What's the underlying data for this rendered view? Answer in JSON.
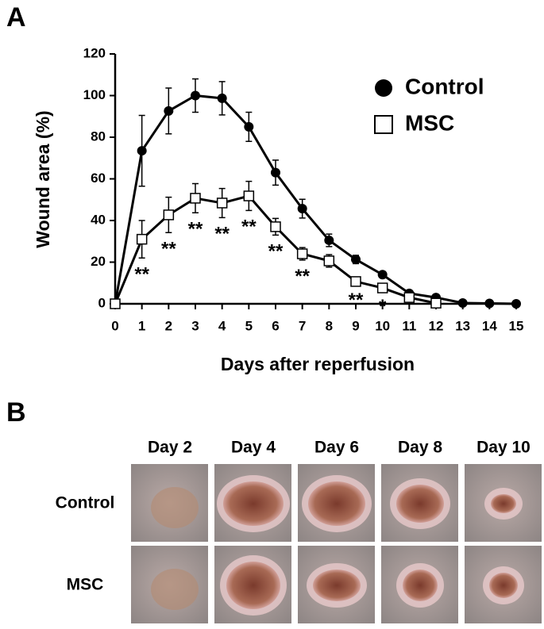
{
  "panel_labels": [
    "A",
    "B"
  ],
  "chart_data": {
    "type": "line",
    "xlabel": "Days after reperfusion",
    "ylabel": "Wound area (%)",
    "x": [
      0,
      1,
      2,
      3,
      4,
      5,
      6,
      7,
      8,
      9,
      10,
      11,
      12,
      13,
      14,
      15
    ],
    "xlim": [
      0,
      15
    ],
    "xticks": [
      0,
      1,
      2,
      3,
      4,
      5,
      6,
      7,
      8,
      9,
      10,
      11,
      12,
      13,
      14,
      15
    ],
    "ylim": [
      0,
      120
    ],
    "yticks": [
      0,
      20,
      40,
      60,
      80,
      100,
      120
    ],
    "series": [
      {
        "name": "Control",
        "color": "#000000",
        "marker": "circle",
        "values": [
          0,
          73.5,
          92.6,
          100,
          98.7,
          85,
          63,
          45.7,
          30.5,
          21.3,
          14,
          5,
          3,
          0.4,
          0.2,
          0
        ],
        "errors": [
          null,
          17,
          11,
          8,
          8,
          7,
          6,
          4.5,
          3,
          2,
          1.5,
          0.8,
          0.5,
          null,
          null,
          null
        ]
      },
      {
        "name": "MSC",
        "color": "#000000",
        "marker": "square",
        "values": [
          0,
          31,
          42.7,
          50.7,
          48.4,
          51.8,
          37,
          24,
          20.6,
          10.7,
          7.6,
          3,
          0.3,
          null,
          null,
          null
        ],
        "errors": [
          null,
          9,
          8.5,
          7,
          7,
          7,
          4,
          3,
          3,
          1,
          1,
          0.5,
          null,
          null,
          null,
          null
        ]
      }
    ],
    "annotations": [
      {
        "x": 1,
        "label": "**"
      },
      {
        "x": 2,
        "label": "**"
      },
      {
        "x": 3,
        "label": "**"
      },
      {
        "x": 4,
        "label": "**"
      },
      {
        "x": 5,
        "label": "**"
      },
      {
        "x": 6,
        "label": "**"
      },
      {
        "x": 7,
        "label": "**"
      },
      {
        "x": 9,
        "label": "**"
      },
      {
        "x": 10,
        "label": "*"
      }
    ]
  },
  "images": {
    "columns": [
      "Day 2",
      "Day 4",
      "Day 6",
      "Day 8",
      "Day 10"
    ],
    "rows": [
      "Control",
      "MSC"
    ]
  }
}
